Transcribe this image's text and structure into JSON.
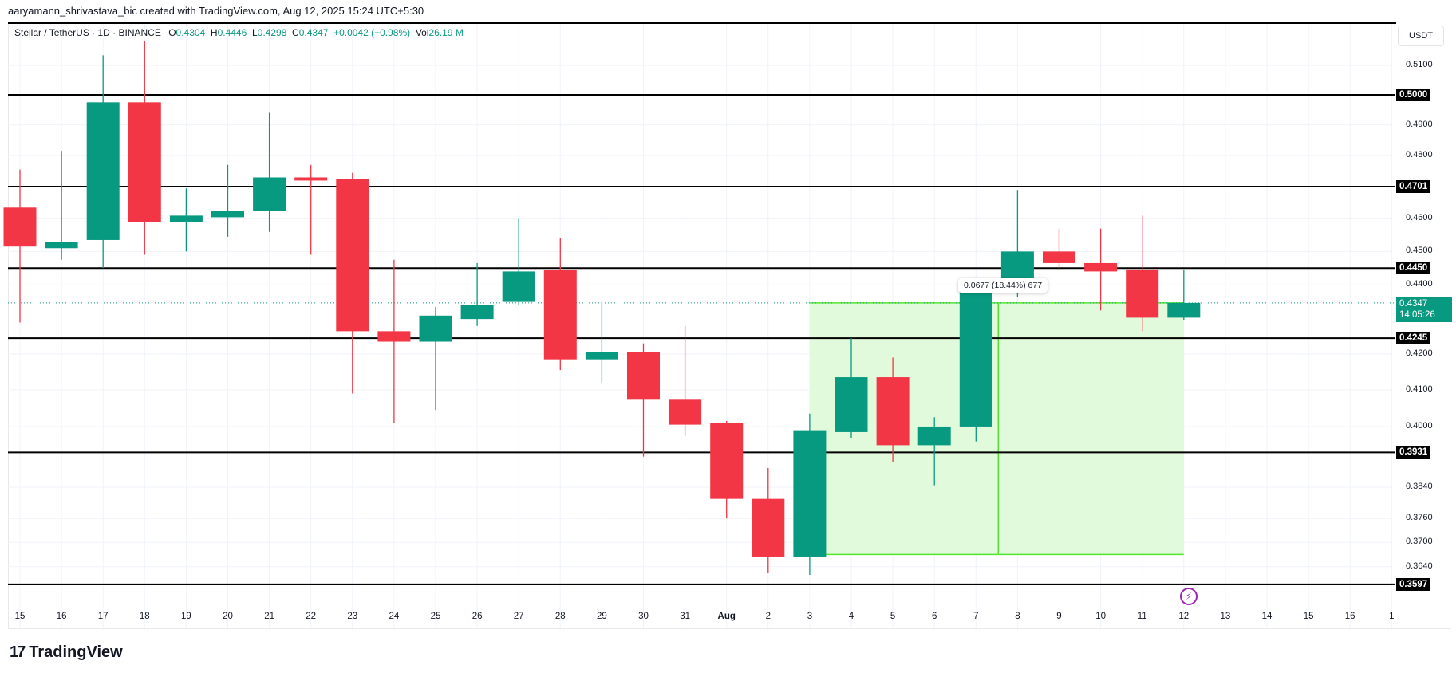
{
  "header": {
    "credit": "aaryamann_shrivastava_bic created with TradingView.com, Aug 12, 2025 15:24 UTC+5:30"
  },
  "legend": {
    "symbol": "Stellar / TetherUS · 1D · BINANCE",
    "o_label": "O",
    "o": "0.4304",
    "h_label": "H",
    "h": "0.4446",
    "l_label": "L",
    "l": "0.4298",
    "c_label": "C",
    "c": "0.4347",
    "change": "+0.0042 (+0.98%)",
    "vol_label": "Vol",
    "vol": "26.19 M"
  },
  "price_axis": {
    "unit": "USDT",
    "ticks": [
      "0.5100",
      "0.4900",
      "0.4800",
      "0.4600",
      "0.4500",
      "0.4400",
      "0.4200",
      "0.4100",
      "0.4000",
      "0.3840",
      "0.3760",
      "0.3700",
      "0.3640"
    ],
    "levels": [
      "0.5000",
      "0.4701",
      "0.4450",
      "0.4245",
      "0.3931",
      "0.3597"
    ],
    "current_price": "0.4347",
    "countdown": "14:05:26"
  },
  "time_axis": {
    "labels": [
      "15",
      "16",
      "17",
      "18",
      "19",
      "20",
      "21",
      "22",
      "23",
      "24",
      "25",
      "26",
      "27",
      "28",
      "29",
      "30",
      "31",
      "Aug",
      "2",
      "3",
      "4",
      "5",
      "6",
      "7",
      "8",
      "9",
      "10",
      "11",
      "12",
      "13",
      "14",
      "15",
      "16",
      "1"
    ]
  },
  "measure": {
    "label": "0.0677 (18.44%) 677"
  },
  "footer": {
    "logo_mark": "17",
    "logo_text": "TradingView"
  },
  "colors": {
    "up": "#089981",
    "down": "#f23645",
    "level_line": "#000000",
    "measure_fill": "#e2fadc",
    "measure_line": "#52e52b",
    "event_icon": "#9c27b0"
  },
  "chart_data": {
    "type": "candlestick",
    "title": "Stellar / TetherUS · 1D · BINANCE",
    "xlabel": "",
    "ylabel": "USDT",
    "scale": "log",
    "ylim": [
      0.355,
      0.518
    ],
    "grid": true,
    "categories": [
      "Jul 15",
      "Jul 16",
      "Jul 17",
      "Jul 18",
      "Jul 19",
      "Jul 20",
      "Jul 21",
      "Jul 22",
      "Jul 23",
      "Jul 24",
      "Jul 25",
      "Jul 26",
      "Jul 27",
      "Jul 28",
      "Jul 29",
      "Jul 30",
      "Jul 31",
      "Aug 1",
      "Aug 2",
      "Aug 3",
      "Aug 4",
      "Aug 5",
      "Aug 6",
      "Aug 7",
      "Aug 8",
      "Aug 9",
      "Aug 10",
      "Aug 11",
      "Aug 12"
    ],
    "ohlc": [
      {
        "o": 0.4635,
        "h": 0.4755,
        "l": 0.429,
        "c": 0.4515
      },
      {
        "o": 0.451,
        "h": 0.4815,
        "l": 0.4475,
        "c": 0.453
      },
      {
        "o": 0.4535,
        "h": 0.5135,
        "l": 0.445,
        "c": 0.4975
      },
      {
        "o": 0.4975,
        "h": 0.5185,
        "l": 0.449,
        "c": 0.459
      },
      {
        "o": 0.459,
        "h": 0.4695,
        "l": 0.45,
        "c": 0.461
      },
      {
        "o": 0.4605,
        "h": 0.477,
        "l": 0.4545,
        "c": 0.4625
      },
      {
        "o": 0.4625,
        "h": 0.494,
        "l": 0.456,
        "c": 0.473
      },
      {
        "o": 0.473,
        "h": 0.477,
        "l": 0.449,
        "c": 0.472
      },
      {
        "o": 0.4725,
        "h": 0.4745,
        "l": 0.409,
        "c": 0.4265
      },
      {
        "o": 0.4265,
        "h": 0.4475,
        "l": 0.401,
        "c": 0.4235
      },
      {
        "o": 0.4235,
        "h": 0.4335,
        "l": 0.4045,
        "c": 0.431
      },
      {
        "o": 0.43,
        "h": 0.4465,
        "l": 0.428,
        "c": 0.434
      },
      {
        "o": 0.435,
        "h": 0.46,
        "l": 0.434,
        "c": 0.444
      },
      {
        "o": 0.4445,
        "h": 0.454,
        "l": 0.4155,
        "c": 0.4185
      },
      {
        "o": 0.4185,
        "h": 0.435,
        "l": 0.412,
        "c": 0.4205
      },
      {
        "o": 0.4205,
        "h": 0.423,
        "l": 0.392,
        "c": 0.4075
      },
      {
        "o": 0.4075,
        "h": 0.428,
        "l": 0.3975,
        "c": 0.4005
      },
      {
        "o": 0.401,
        "h": 0.4015,
        "l": 0.376,
        "c": 0.381
      },
      {
        "o": 0.381,
        "h": 0.389,
        "l": 0.3625,
        "c": 0.3665
      },
      {
        "o": 0.3665,
        "h": 0.4035,
        "l": 0.362,
        "c": 0.399
      },
      {
        "o": 0.3985,
        "h": 0.4245,
        "l": 0.397,
        "c": 0.4135
      },
      {
        "o": 0.4135,
        "h": 0.419,
        "l": 0.3905,
        "c": 0.395
      },
      {
        "o": 0.395,
        "h": 0.4025,
        "l": 0.3845,
        "c": 0.4
      },
      {
        "o": 0.4,
        "h": 0.4385,
        "l": 0.396,
        "c": 0.438
      },
      {
        "o": 0.438,
        "h": 0.469,
        "l": 0.4365,
        "c": 0.45
      },
      {
        "o": 0.45,
        "h": 0.457,
        "l": 0.4445,
        "c": 0.4465
      },
      {
        "o": 0.4465,
        "h": 0.457,
        "l": 0.4325,
        "c": 0.444
      },
      {
        "o": 0.4446,
        "h": 0.461,
        "l": 0.4265,
        "c": 0.4304
      },
      {
        "o": 0.4304,
        "h": 0.4446,
        "l": 0.4298,
        "c": 0.4347
      }
    ],
    "horizontal_levels": [
      0.5,
      0.4701,
      0.445,
      0.4245,
      0.3931,
      0.3597
    ],
    "annotations": [
      {
        "type": "price_range",
        "from": 0.367,
        "to": 0.4347,
        "label": "0.0677 (18.44%) 677",
        "x_start": "Aug 3",
        "x_end": "Aug 12"
      }
    ]
  }
}
